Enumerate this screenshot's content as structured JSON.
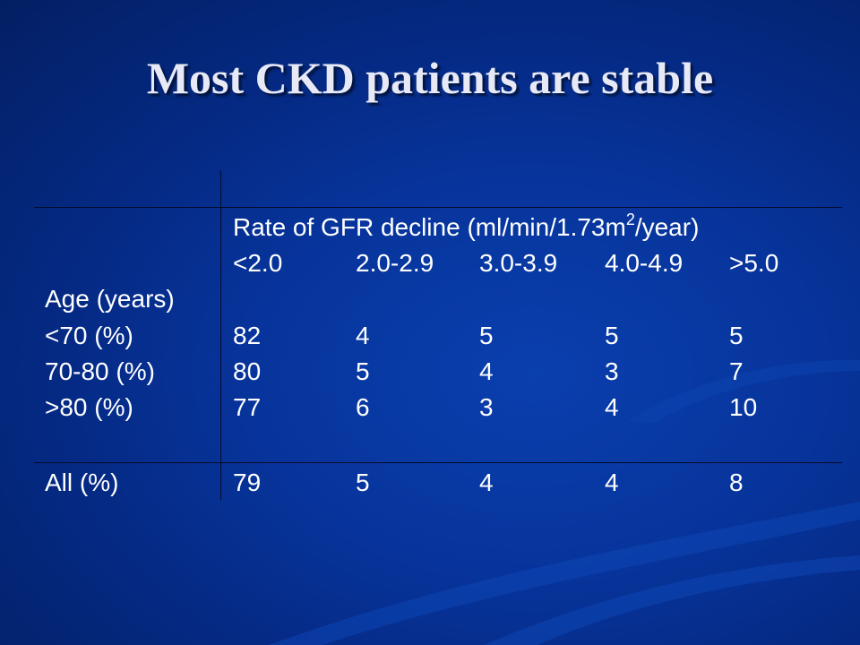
{
  "slide": {
    "title": "Most CKD patients are stable"
  },
  "table": {
    "header_label": "Rate of GFR decline  (ml/min/1.73m",
    "header_unit_sup": "2",
    "header_unit_tail": "/year)",
    "columns": [
      "<2.0",
      "2.0-2.9",
      "3.0-3.9",
      "4.0-4.9",
      ">5.0"
    ],
    "row_group_label": "Age (years)",
    "rows": [
      {
        "label": "<70 (%)",
        "values": [
          "82",
          "4",
          "5",
          "5",
          "5"
        ]
      },
      {
        "label": "70-80 (%)",
        "values": [
          "80",
          "5",
          "4",
          "3",
          "7"
        ]
      },
      {
        "label": ">80 (%)",
        "values": [
          "77",
          "6",
          "3",
          "4",
          "10"
        ]
      }
    ],
    "total_row": {
      "label": "All (%)",
      "values": [
        "79",
        "5",
        "4",
        "4",
        "8"
      ]
    }
  }
}
